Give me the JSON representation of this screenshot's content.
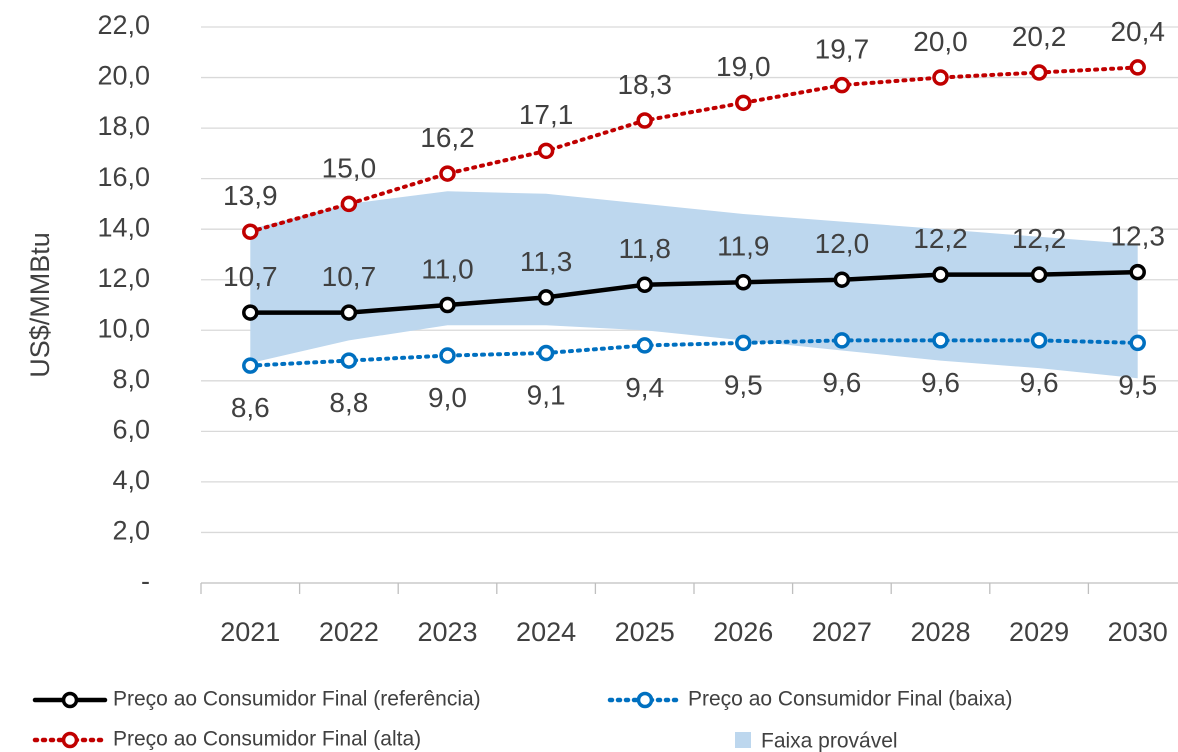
{
  "chart_data": {
    "type": "line",
    "y_label": "US$/MMBtu",
    "categories": [
      "2021",
      "2022",
      "2023",
      "2024",
      "2025",
      "2026",
      "2027",
      "2028",
      "2029",
      "2030"
    ],
    "ylim": [
      0,
      22
    ],
    "yticks": [
      {
        "value": 0,
        "label": "-"
      },
      {
        "value": 2,
        "label": "2,0"
      },
      {
        "value": 4,
        "label": "4,0"
      },
      {
        "value": 6,
        "label": "6,0"
      },
      {
        "value": 8,
        "label": "8,0"
      },
      {
        "value": 10,
        "label": "10,0"
      },
      {
        "value": 12,
        "label": "12,0"
      },
      {
        "value": 14,
        "label": "14,0"
      },
      {
        "value": 16,
        "label": "16,0"
      },
      {
        "value": 18,
        "label": "18,0"
      },
      {
        "value": 20,
        "label": "20,0"
      },
      {
        "value": 22,
        "label": "22,0"
      }
    ],
    "grid": true,
    "legend": "bottom",
    "series": [
      {
        "name": "Preço ao Consumidor Final (referência)",
        "color": "#000000",
        "dash": false,
        "label_side": "above",
        "values": [
          10.7,
          10.7,
          11.0,
          11.3,
          11.8,
          11.9,
          12.0,
          12.2,
          12.2,
          12.3
        ],
        "value_labels": [
          "10,7",
          "10,7",
          "11,0",
          "11,3",
          "11,8",
          "11,9",
          "12,0",
          "12,2",
          "12,2",
          "12,3"
        ]
      },
      {
        "name": "Preço ao Consumidor Final (baixa)",
        "color": "#0070c0",
        "dash": true,
        "label_side": "below",
        "values": [
          8.6,
          8.8,
          9.0,
          9.1,
          9.4,
          9.5,
          9.6,
          9.6,
          9.6,
          9.5
        ],
        "value_labels": [
          "8,6",
          "8,8",
          "9,0",
          "9,1",
          "9,4",
          "9,5",
          "9,6",
          "9,6",
          "9,6",
          "9,5"
        ]
      },
      {
        "name": "Preço ao Consumidor Final (alta)",
        "color": "#c00000",
        "dash": true,
        "label_side": "above",
        "values": [
          13.9,
          15.0,
          16.2,
          17.1,
          18.3,
          19.0,
          19.7,
          20.0,
          20.2,
          20.4
        ],
        "value_labels": [
          "13,9",
          "15,0",
          "16,2",
          "17,1",
          "18,3",
          "19,0",
          "19,7",
          "20,0",
          "20,2",
          "20,4"
        ]
      },
      {
        "name": "Faixa provável",
        "color": "#bdd7ee",
        "type": "area",
        "upper": [
          14.0,
          15.0,
          15.5,
          15.4,
          15.0,
          14.6,
          14.3,
          14.0,
          13.7,
          13.4
        ],
        "lower": [
          8.7,
          9.6,
          10.2,
          10.2,
          10.0,
          9.6,
          9.2,
          8.8,
          8.5,
          8.1
        ]
      }
    ]
  }
}
